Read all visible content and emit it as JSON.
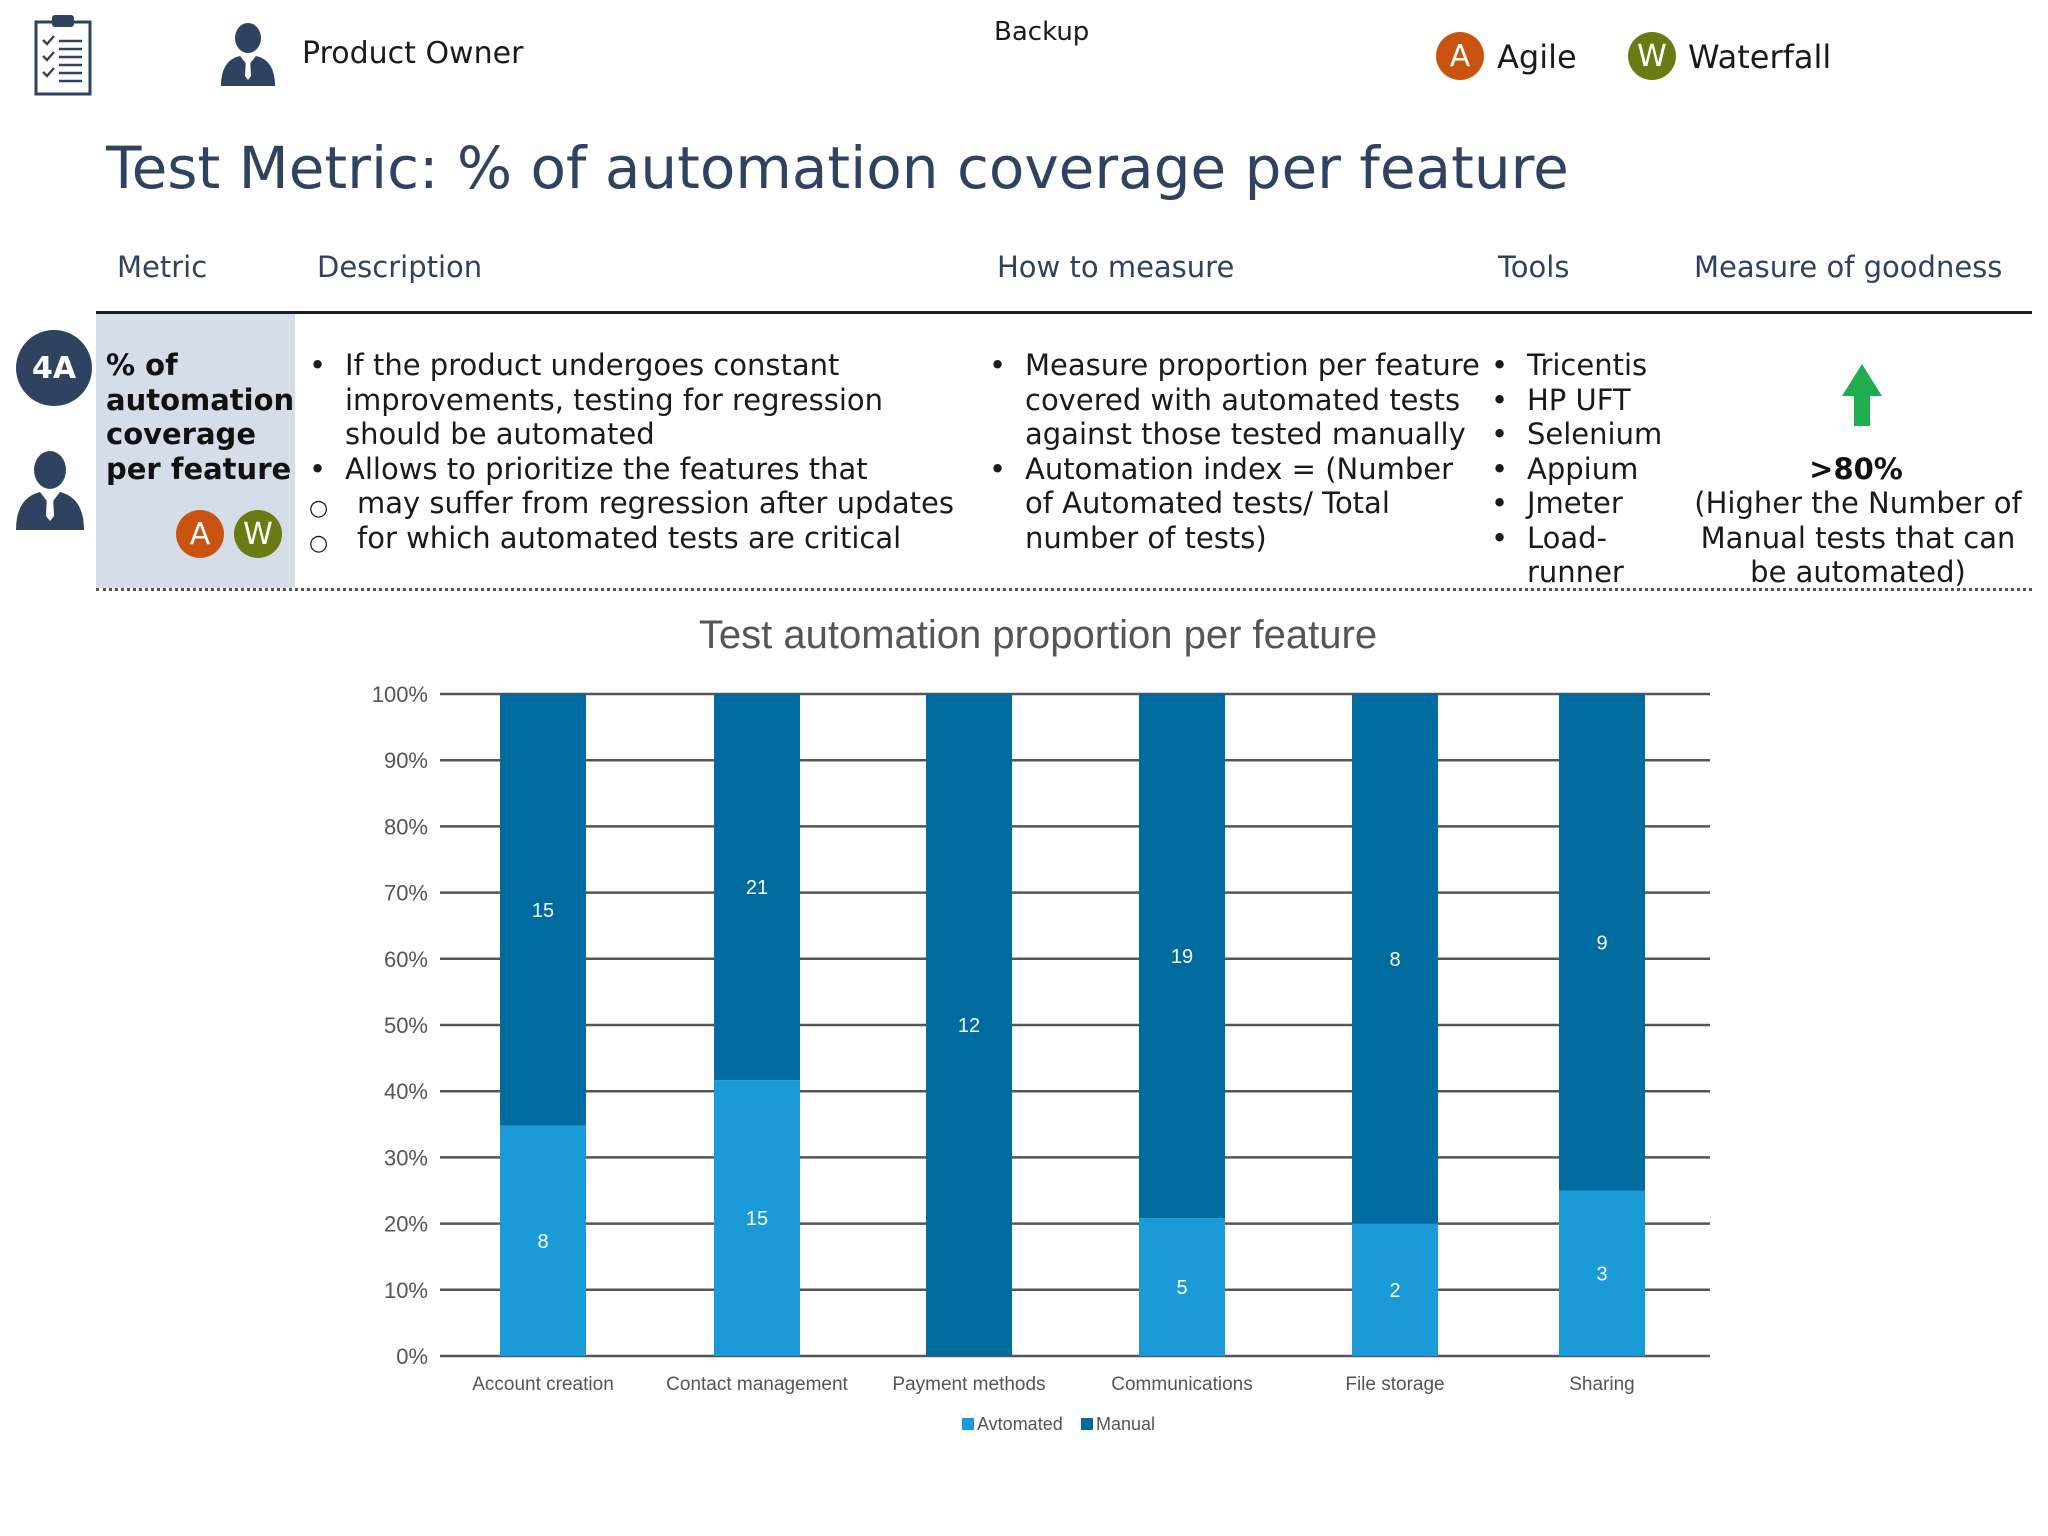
{
  "header": {
    "role": "Product Owner",
    "backup": "Backup",
    "legend": [
      {
        "letter": "A",
        "label": "Agile",
        "color": "#c9540f"
      },
      {
        "letter": "W",
        "label": "Waterfall",
        "color": "#6b7a12"
      }
    ]
  },
  "title": "Test Metric: % of automation coverage per feature",
  "columns": {
    "metric": "Metric",
    "description": "Description",
    "how": "How to measure",
    "tools": "Tools",
    "goodness": "Measure of goodness"
  },
  "row": {
    "id": "4A",
    "metric_lines": [
      "% of",
      "automation",
      "coverage",
      "per feature"
    ],
    "badges": [
      "A",
      "W"
    ],
    "description": [
      {
        "text": "If the product undergoes constant improvements, testing for regression should be automated",
        "level": 0
      },
      {
        "text": "Allows to prioritize the features that",
        "level": 0
      },
      {
        "text": "may suffer from regression after updates",
        "level": 1
      },
      {
        "text": "for which automated tests are critical",
        "level": 1
      }
    ],
    "how": [
      "Measure proportion per feature covered with automated tests against those tested manually",
      "Automation index = (Number of Automated tests/ Total number of  tests)"
    ],
    "tools": [
      "Tricentis",
      "HP UFT",
      "Selenium",
      "Appium",
      "Jmeter",
      "Load-runner"
    ],
    "goodness_value": ">80%",
    "goodness_note": "(Higher the Number of Manual tests that can be automated)"
  },
  "chart_data": {
    "type": "bar",
    "stacked": true,
    "title": "Test automation proportion per feature",
    "categories": [
      "Account creation",
      "Contact management",
      "Payment methods",
      "Communications",
      "File storage",
      "Sharing"
    ],
    "series": [
      {
        "name": "Avtomated",
        "values": [
          8,
          15,
          0,
          5,
          2,
          3
        ],
        "color": "#1a9bd7"
      },
      {
        "name": "Manual",
        "values": [
          15,
          21,
          12,
          19,
          8,
          9
        ],
        "color": "#006b9f"
      }
    ],
    "yticks": [
      "0%",
      "10%",
      "20%",
      "30%",
      "40%",
      "50%",
      "60%",
      "70%",
      "80%",
      "90%",
      "100%"
    ],
    "ylim": [
      0,
      100
    ],
    "grid": true,
    "legend": "bottom"
  }
}
